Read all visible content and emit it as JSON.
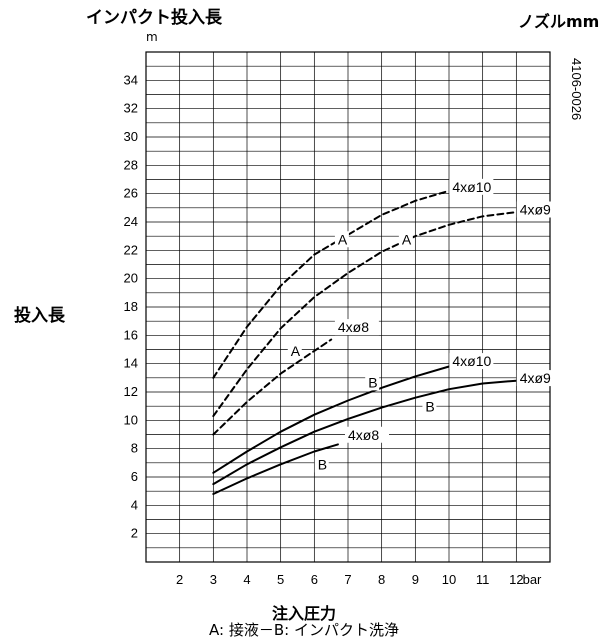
{
  "header": {
    "title": "インパクト投入長",
    "y_unit": "m",
    "nozzle_label": "ノズルmm",
    "code": "4106-0026"
  },
  "chart_data": {
    "type": "line",
    "title": "インパクト投入長",
    "ylabel": "投入長",
    "yunit": "m",
    "xlabel": "注入圧力",
    "xunit": "bar",
    "caption": "A: 接液－B: インパクト洗浄",
    "xlim": [
      1,
      13
    ],
    "ylim": [
      0,
      36
    ],
    "xticks": [
      2,
      3,
      4,
      5,
      6,
      7,
      8,
      9,
      10,
      11,
      12
    ],
    "yticks": [
      2,
      4,
      6,
      8,
      10,
      12,
      14,
      16,
      18,
      20,
      22,
      24,
      26,
      28,
      30,
      32,
      34
    ],
    "grid": true,
    "series": [
      {
        "name": "4xø10",
        "group": "A",
        "style": "dashed",
        "x": [
          3,
          4,
          5,
          6,
          7,
          8,
          9,
          10
        ],
        "y": [
          13.0,
          16.6,
          19.5,
          21.7,
          23.1,
          24.5,
          25.5,
          26.2
        ]
      },
      {
        "name": "4xø9",
        "group": "A",
        "style": "dashed",
        "x": [
          3,
          4,
          5,
          6,
          7,
          8,
          9,
          10,
          11,
          12
        ],
        "y": [
          10.3,
          13.6,
          16.5,
          18.7,
          20.4,
          21.9,
          23.0,
          23.8,
          24.4,
          24.7
        ]
      },
      {
        "name": "4xø8",
        "group": "A",
        "style": "dashed",
        "x": [
          3,
          4,
          5,
          6,
          6.5
        ],
        "y": [
          9.0,
          11.3,
          13.3,
          14.9,
          15.7
        ]
      },
      {
        "name": "4xø10",
        "group": "B",
        "style": "solid",
        "x": [
          3,
          4,
          5,
          6,
          7,
          8,
          9,
          10
        ],
        "y": [
          6.3,
          7.8,
          9.2,
          10.4,
          11.4,
          12.3,
          13.1,
          13.8
        ]
      },
      {
        "name": "4xø9",
        "group": "B",
        "style": "solid",
        "x": [
          3,
          4,
          5,
          6,
          7,
          8,
          9,
          10,
          11,
          12
        ],
        "y": [
          5.5,
          6.9,
          8.1,
          9.2,
          10.1,
          10.9,
          11.6,
          12.2,
          12.6,
          12.8
        ]
      },
      {
        "name": "4xø8",
        "group": "B",
        "style": "solid",
        "x": [
          3,
          4,
          5,
          6,
          6.7
        ],
        "y": [
          4.8,
          5.9,
          6.9,
          7.8,
          8.3
        ]
      }
    ],
    "annotations": [
      {
        "text": "4xø10",
        "x": 10.1,
        "y": 26.2
      },
      {
        "text": "4xø9",
        "x": 12.1,
        "y": 24.6
      },
      {
        "text": "4xø8",
        "x": 6.7,
        "y": 16.3
      },
      {
        "text": "4xø10",
        "x": 10.1,
        "y": 13.9
      },
      {
        "text": "4xø9",
        "x": 12.1,
        "y": 12.7
      },
      {
        "text": "4xø8",
        "x": 7.0,
        "y": 8.7
      },
      {
        "text": "A",
        "x": 6.7,
        "y": 22.5
      },
      {
        "text": "A",
        "x": 8.6,
        "y": 22.5
      },
      {
        "text": "A",
        "x": 5.3,
        "y": 14.6
      },
      {
        "text": "B",
        "x": 7.6,
        "y": 12.4
      },
      {
        "text": "B",
        "x": 9.3,
        "y": 10.7
      },
      {
        "text": "B",
        "x": 6.1,
        "y": 6.6
      }
    ]
  }
}
